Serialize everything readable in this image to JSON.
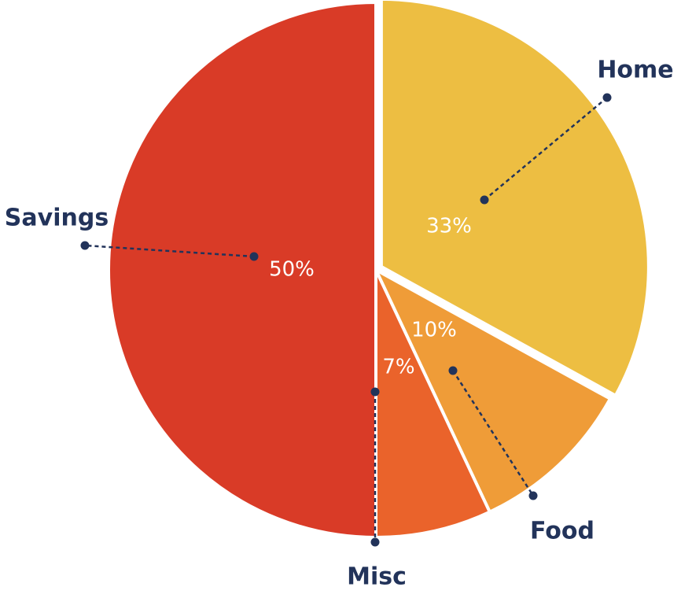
{
  "chart_data": {
    "type": "pie",
    "slices": [
      {
        "name": "Home",
        "value": 33,
        "label": "33%",
        "color": "#EDBE42"
      },
      {
        "name": "Food",
        "value": 10,
        "label": "10%",
        "color": "#EF9C38"
      },
      {
        "name": "Misc",
        "value": 7,
        "label": "7%",
        "color": "#EA632B"
      },
      {
        "name": "Savings",
        "value": 50,
        "label": "50%",
        "color": "#D93B27"
      }
    ],
    "legend": "callout labels with dotted leader lines"
  },
  "colors": {
    "label_text": "#22335A",
    "percent_text": "#FFFFFF",
    "separator": "#FFFFFF"
  }
}
